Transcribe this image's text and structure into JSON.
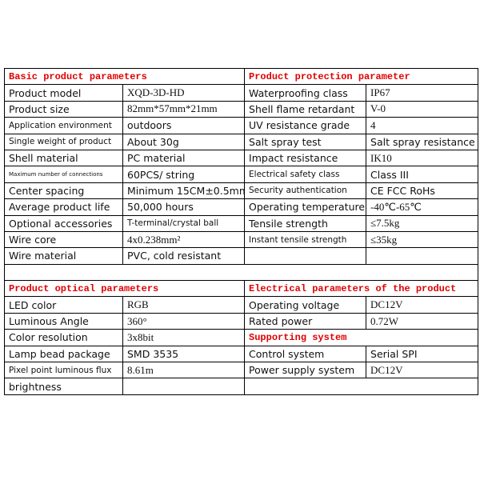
{
  "table": {
    "rows": [
      [
        "Basic product parameters",
        "Product protection parameter"
      ],
      [
        "Product model",
        "XQD-3D-HD",
        "Waterproofing class",
        "IP67"
      ],
      [
        "Product size",
        "82mm*57mm*21mm",
        "Shell flame retardant",
        "V-0"
      ],
      [
        "Application environment",
        "outdoors",
        "UV resistance grade",
        "4"
      ],
      [
        "Single weight of product",
        "About 30g",
        "Salt spray test",
        "Salt spray resistance"
      ],
      [
        "Shell material",
        "PC material",
        "Impact resistance",
        "IK10"
      ],
      [
        "Maximum number of connections",
        "60PCS/ string",
        "Electrical safety class",
        "Class III"
      ],
      [
        "Center spacing",
        "Minimum 15CM±0.5mm",
        "Security authentication",
        "CE FCC RoHs"
      ],
      [
        "Average product life",
        "50,000 hours",
        "Operating temperature",
        "-40℃-65℃"
      ],
      [
        "Optional accessories",
        "T-terminal/crystal ball",
        "Tensile strength",
        "≤7.5kg"
      ],
      [
        "Wire core",
        "4x0.238mm²",
        "Instant tensile strength",
        "≤35kg"
      ],
      [
        "Wire material",
        "PVC, cold resistant"
      ],
      [],
      [
        "Product optical parameters",
        "Electrical parameters of the product"
      ],
      [
        "LED color",
        "RGB",
        "Operating voltage",
        "DC12V"
      ],
      [
        "Luminous Angle",
        "360°",
        "Rated power",
        "0.72W"
      ],
      [
        "Color resolution",
        "3x8bit",
        "Supporting system"
      ],
      [
        "Lamp bead package",
        "SMD 3535",
        "Control system",
        "Serial SPI"
      ],
      [
        "Pixel point luminous flux",
        "8.61m",
        "Power supply system",
        "DC12V"
      ],
      [
        "brightness"
      ]
    ]
  }
}
